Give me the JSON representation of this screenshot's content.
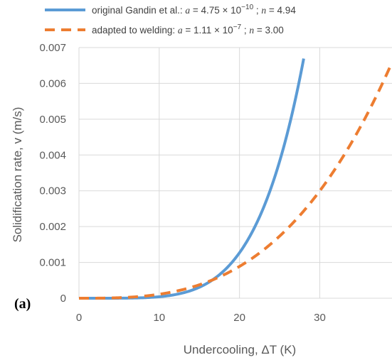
{
  "chart_data": {
    "type": "line",
    "panel_label": "(a)",
    "xlabel": "Undercooling, ΔT (K)",
    "ylabel": "Solidification rate, v (m/s)",
    "xlim": [
      0,
      39
    ],
    "ylim": [
      0,
      0.007
    ],
    "x_ticks": [
      "0",
      "10",
      "20",
      "30"
    ],
    "y_ticks": [
      "0",
      "0.001",
      "0.002",
      "0.003",
      "0.004",
      "0.005",
      "0.006",
      "0.007"
    ],
    "grid": true,
    "legend_position": "top",
    "series": [
      {
        "name": "original Gandin et al.:",
        "legend_a_value": "4.75 × 10",
        "legend_a_exp": "−10",
        "legend_n_value": "4.94",
        "a": 4.75e-10,
        "n": 4.94,
        "x_range": [
          0,
          28
        ],
        "style": "solid",
        "color": "#5b9bd5"
      },
      {
        "name": "adapted to welding:",
        "legend_a_value": "1.11 × 10",
        "legend_a_exp": "−7",
        "legend_n_value": "3.00",
        "a": 1.11e-07,
        "n": 3.0,
        "x_range": [
          0,
          39
        ],
        "style": "dashed",
        "color": "#ed7d31"
      }
    ]
  }
}
